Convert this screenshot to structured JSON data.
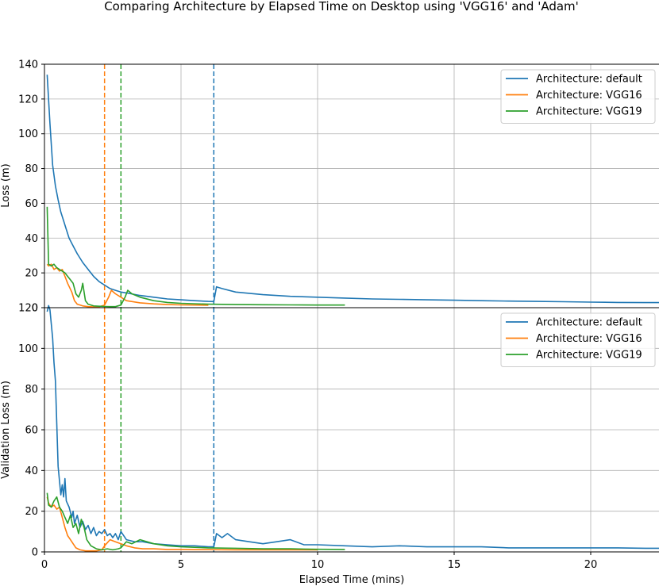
{
  "chart_data": {
    "type": "line",
    "title": "Comparing Architecture by Elapsed Time on Desktop using 'VGG16' and 'Adam'",
    "xlabel": "Elapsed Time (mins)",
    "xlim": [
      0,
      22.5
    ],
    "xticks": [
      0,
      5,
      10,
      15,
      20
    ],
    "grid": true,
    "legend_position": "top-right",
    "colors": {
      "default": "#1f77b4",
      "VGG16": "#ff7f0e",
      "VGG19": "#2ca02c"
    },
    "vlines": [
      {
        "series": "VGG16",
        "x": 2.2,
        "style": "dashed"
      },
      {
        "series": "VGG19",
        "x": 2.8,
        "style": "dashed"
      },
      {
        "series": "default",
        "x": 6.2,
        "style": "dashed"
      }
    ],
    "panels": [
      {
        "ylabel": "Loss (m)",
        "ylim": [
          0,
          140
        ],
        "yticks": [
          0,
          20,
          40,
          60,
          80,
          100,
          120,
          140
        ],
        "series": [
          {
            "name": "Architecture: default",
            "key": "default",
            "x": [
              0.1,
              0.2,
              0.3,
              0.4,
              0.5,
              0.6,
              0.7,
              0.8,
              0.9,
              1.0,
              1.1,
              1.2,
              1.4,
              1.6,
              1.8,
              2.0,
              2.2,
              2.4,
              2.6,
              2.8,
              3.0,
              3.5,
              4.0,
              4.5,
              5.0,
              5.5,
              6.0,
              6.2,
              6.3,
              6.5,
              7.0,
              8.0,
              9.0,
              10.0,
              11.0,
              12.0,
              13.0,
              14.0,
              15.0,
              16.0,
              17.0,
              18.0,
              19.0,
              20.0,
              21.0,
              22.0,
              22.5
            ],
            "y": [
              134,
              106,
              82,
              70,
              62,
              55,
              50,
              45,
              40,
              37,
              34,
              31,
              26,
              22,
              18,
              15,
              13,
              11,
              10,
              9,
              8.5,
              7,
              6,
              5,
              4.5,
              4,
              3.6,
              3.5,
              12,
              11,
              9,
              7.5,
              6.5,
              6,
              5.5,
              5,
              4.8,
              4.5,
              4.3,
              4,
              3.8,
              3.6,
              3.4,
              3.2,
              3.0,
              2.9,
              2.9
            ]
          },
          {
            "name": "Architecture: VGG16",
            "key": "VGG16",
            "x": [
              0.1,
              0.15,
              0.25,
              0.35,
              0.45,
              0.55,
              0.65,
              0.75,
              0.85,
              1.0,
              1.1,
              1.2,
              1.4,
              1.6,
              1.8,
              2.0,
              2.2,
              2.35,
              2.45,
              2.6,
              2.8,
              3.0,
              3.5,
              4.0,
              4.5,
              5.0,
              5.5,
              6.0
            ],
            "y": [
              25,
              24,
              25,
              22,
              23,
              21,
              22,
              18,
              14,
              9,
              4,
              2,
              1,
              0.6,
              0.5,
              0.5,
              1.5,
              6,
              10,
              8,
              6,
              4,
              2.8,
              2.2,
              1.8,
              1.6,
              1.5,
              1.4
            ]
          },
          {
            "name": "Architecture: VGG19",
            "key": "VGG19",
            "x": [
              0.1,
              0.15,
              0.25,
              0.35,
              0.45,
              0.55,
              0.65,
              0.75,
              0.85,
              0.95,
              1.05,
              1.15,
              1.25,
              1.35,
              1.4,
              1.5,
              1.6,
              1.8,
              2.0,
              2.2,
              2.4,
              2.6,
              2.8,
              2.95,
              3.05,
              3.2,
              3.5,
              4.0,
              4.5,
              5.0,
              6.0,
              7.0,
              8.0,
              9.0,
              10.0,
              11.0
            ],
            "y": [
              58,
              25,
              24,
              25,
              23,
              22,
              21,
              20,
              18,
              16,
              14,
              8,
              6,
              10,
              14,
              4,
              2,
              1,
              0.8,
              0.7,
              0.6,
              0.6,
              1.5,
              6,
              10,
              8,
              6,
              4,
              3,
              2.5,
              2,
              1.8,
              1.7,
              1.6,
              1.5,
              1.5
            ]
          }
        ]
      },
      {
        "ylabel": "Validation Loss (m)",
        "ylim": [
          0,
          120
        ],
        "yticks": [
          0,
          20,
          40,
          60,
          80,
          100,
          120
        ],
        "series": [
          {
            "name": "Architecture: default",
            "key": "default",
            "x": [
              0.1,
              0.15,
              0.2,
              0.25,
              0.3,
              0.35,
              0.4,
              0.45,
              0.5,
              0.55,
              0.6,
              0.65,
              0.7,
              0.75,
              0.8,
              0.9,
              1.0,
              1.05,
              1.1,
              1.2,
              1.3,
              1.4,
              1.5,
              1.6,
              1.7,
              1.8,
              1.9,
              2.0,
              2.1,
              2.2,
              2.3,
              2.4,
              2.5,
              2.6,
              2.7,
              2.8,
              3.0,
              3.3,
              3.6,
              4.0,
              4.5,
              5.0,
              5.5,
              6.0,
              6.2,
              6.3,
              6.5,
              6.7,
              7.0,
              7.5,
              8.0,
              8.5,
              9.0,
              9.5,
              10.0,
              11.0,
              12.0,
              13.0,
              14.0,
              15.0,
              16.0,
              17.0,
              18.0,
              19.0,
              20.0,
              21.0,
              22.0,
              22.5
            ],
            "y": [
              118,
              121,
              119,
              112,
              105,
              93,
              84,
              63,
              42,
              35,
              28,
              33,
              27,
              36,
              25,
              22,
              17,
              20,
              14,
              18,
              12,
              15,
              11,
              13,
              9,
              12,
              8,
              10,
              9,
              11,
              8,
              9,
              7,
              9,
              6,
              10,
              6,
              5,
              5,
              4,
              3.5,
              3,
              3,
              2.5,
              2.5,
              9,
              7,
              9,
              6,
              5,
              4,
              5,
              6,
              3.5,
              3.5,
              3,
              2.5,
              3,
              2.5,
              2.5,
              2.5,
              2,
              2,
              2,
              2,
              2,
              1.8,
              1.8
            ]
          },
          {
            "name": "Architecture: VGG16",
            "key": "VGG16",
            "x": [
              0.1,
              0.15,
              0.25,
              0.35,
              0.45,
              0.55,
              0.65,
              0.75,
              0.85,
              0.95,
              1.05,
              1.15,
              1.3,
              1.5,
              1.7,
              1.9,
              2.1,
              2.2,
              2.4,
              2.6,
              2.8,
              3.0,
              3.3,
              3.6,
              4.0,
              4.5,
              5.0,
              5.5,
              6.0,
              7.0,
              8.0,
              9.0,
              10.0
            ],
            "y": [
              27,
              24,
              22,
              23,
              21,
              22,
              17,
              12,
              8,
              6,
              4,
              2,
              1,
              0.5,
              0.5,
              0.5,
              1,
              3,
              6,
              5,
              4,
              3,
              2,
              1.5,
              1.5,
              1.2,
              1.2,
              1.1,
              1.1,
              1,
              1,
              1,
              1
            ]
          },
          {
            "name": "Architecture: VGG19",
            "key": "VGG19",
            "x": [
              0.1,
              0.15,
              0.25,
              0.35,
              0.45,
              0.55,
              0.65,
              0.75,
              0.85,
              0.95,
              1.05,
              1.15,
              1.25,
              1.35,
              1.45,
              1.55,
              1.7,
              1.9,
              2.1,
              2.3,
              2.5,
              2.7,
              2.8,
              3.0,
              3.2,
              3.5,
              4.0,
              4.5,
              5.0,
              6.0,
              7.0,
              8.0,
              9.0,
              10.0,
              11.0
            ],
            "y": [
              29,
              23,
              22,
              25,
              27,
              22,
              20,
              17,
              14,
              18,
              12,
              14,
              9,
              16,
              12,
              6,
              3,
              1.5,
              1,
              1.5,
              1,
              1.5,
              2,
              5,
              4,
              6,
              4,
              3,
              2.5,
              2,
              1.8,
              1.5,
              1.5,
              1.3,
              1.2
            ]
          }
        ]
      }
    ]
  }
}
